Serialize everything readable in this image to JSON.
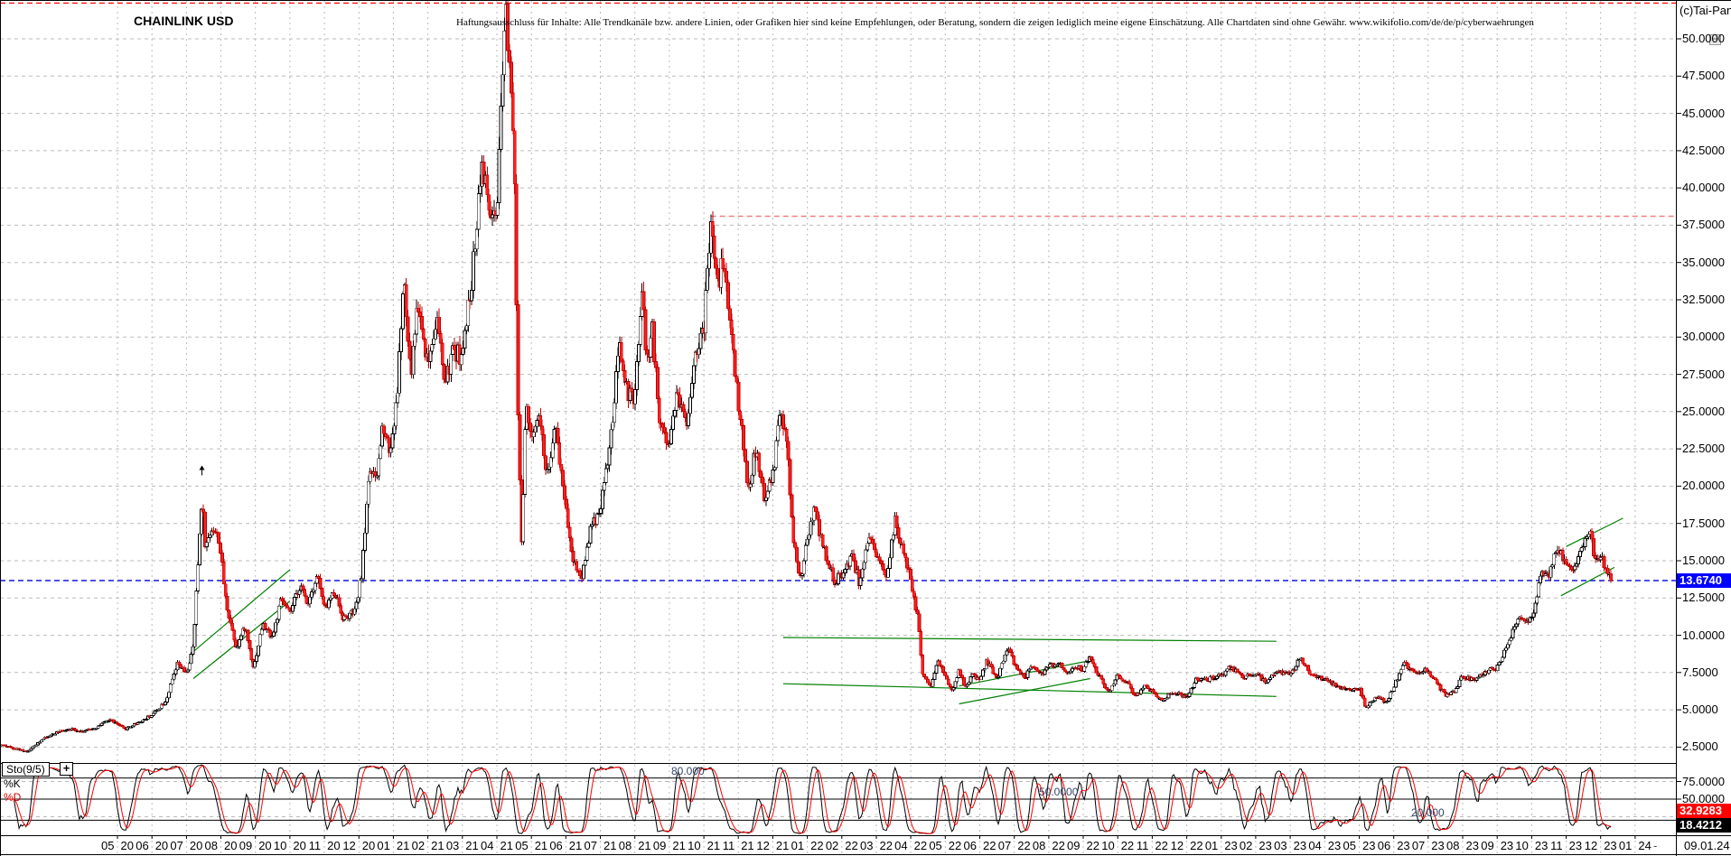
{
  "header": {
    "title": "CHAINLINK USD",
    "disclaimer": "Haftungsausschluss für Inhalte: Alle Trendkanäle bzw. andere Linien, oder Grafiken hier sind keine Empfehlungen, oder Beratung, sondern die zeigen lediglich meine eigene Einschätzung. Alle Chartdaten sind ohne Gewähr.  www.wikifolio.com/de/de/p/cyberwaehrungen",
    "copyright": "(c)Tai-Pan"
  },
  "colors": {
    "up_fill": "#ffffff",
    "up_stroke": "#000000",
    "down_fill": "#ff2020",
    "down_stroke": "#bb0000",
    "grid": "#bbbbbb",
    "frame": "#000000",
    "blue_line": "#0000e0",
    "blue_label_bg": "#0000ff",
    "red_line_top": "#ff1010",
    "red_line_resistance": "#f08080",
    "trend_green": "#008000",
    "sto_k": "#000000",
    "sto_d": "#ff0000",
    "d_label_bg": "#ff0000",
    "k_label_bg": "#000000",
    "threshold_label": "#35466b"
  },
  "chart_data": {
    "type": "candlestick",
    "title": "CHAINLINK USD",
    "x_axis": {
      "labels": [
        "05/20",
        "06/20",
        "07/20",
        "08/20",
        "09/20",
        "10/20",
        "11/20",
        "12/20",
        "01/21",
        "02/21",
        "03/21",
        "04/21",
        "05/21",
        "06/21",
        "07/21",
        "08/21",
        "09/21",
        "10/21",
        "11/21",
        "12/21",
        "01/22",
        "02/22",
        "03/22",
        "04/22",
        "05/22",
        "06/22",
        "07/22",
        "08/22",
        "09/22",
        "10/22",
        "11/22",
        "12/22",
        "01/23",
        "02/23",
        "03/23",
        "04/23",
        "05/23",
        "06/23",
        "07/23",
        "08/23",
        "09/23",
        "10/23",
        "11/23",
        "12/23",
        "01/24"
      ],
      "separator_label": "-",
      "last_date": "09.01.24"
    },
    "y_axis": {
      "min": 2.5,
      "max": 50,
      "tick_labels": [
        "50.0000",
        "47.5000",
        "45.0000",
        "42.5000",
        "40.0000",
        "37.5000",
        "35.0000",
        "32.5000",
        "30.0000",
        "27.5000",
        "25.0000",
        "22.5000",
        "20.0000",
        "17.5000",
        "15.0000",
        "12.5000",
        "10.0000",
        "7.5000",
        "5.0000",
        "2.5000"
      ],
      "last_price": 13.674,
      "last_price_label": "13.6740"
    },
    "series": {
      "name": "CHAINLINK USD",
      "unit_note": "keyframes are [months_since_2020-05-01, price_usd] read from the chart",
      "keyframes": [
        [
          -2.35,
          2.65
        ],
        [
          -2.0,
          2.45
        ],
        [
          -1.6,
          2.2
        ],
        [
          -1.2,
          3.0
        ],
        [
          -0.8,
          3.45
        ],
        [
          -0.4,
          3.75
        ],
        [
          0,
          3.55
        ],
        [
          0.4,
          3.85
        ],
        [
          0.8,
          4.35
        ],
        [
          1.2,
          3.7
        ],
        [
          1.6,
          4.15
        ],
        [
          2.0,
          4.65
        ],
        [
          2.4,
          5.6
        ],
        [
          2.75,
          8.1
        ],
        [
          3.0,
          7.4
        ],
        [
          3.2,
          9.2
        ],
        [
          3.45,
          19.3
        ],
        [
          3.55,
          15.8
        ],
        [
          3.75,
          17.3
        ],
        [
          3.95,
          16.4
        ],
        [
          4.15,
          12.2
        ],
        [
          4.45,
          9.2
        ],
        [
          4.7,
          10.6
        ],
        [
          4.95,
          7.8
        ],
        [
          5.2,
          10.7
        ],
        [
          5.5,
          9.9
        ],
        [
          5.75,
          12.4
        ],
        [
          6.0,
          11.4
        ],
        [
          6.3,
          13.4
        ],
        [
          6.5,
          12.1
        ],
        [
          6.8,
          14.1
        ],
        [
          7.0,
          11.7
        ],
        [
          7.3,
          13.0
        ],
        [
          7.55,
          11.1
        ],
        [
          7.9,
          11.6
        ],
        [
          8.1,
          14.4
        ],
        [
          8.3,
          21.3
        ],
        [
          8.5,
          20.2
        ],
        [
          8.7,
          24.3
        ],
        [
          8.9,
          22.3
        ],
        [
          9.1,
          25.6
        ],
        [
          9.3,
          33.8
        ],
        [
          9.5,
          27.2
        ],
        [
          9.7,
          32.4
        ],
        [
          10.0,
          28.2
        ],
        [
          10.25,
          31.4
        ],
        [
          10.5,
          26.8
        ],
        [
          10.75,
          29.2
        ],
        [
          11.0,
          28.6
        ],
        [
          11.3,
          34.4
        ],
        [
          11.55,
          41.8
        ],
        [
          11.8,
          38.2
        ],
        [
          12.0,
          37.6
        ],
        [
          12.25,
          52.4
        ],
        [
          12.35,
          49.2
        ],
        [
          12.5,
          43.6
        ],
        [
          12.62,
          24.5
        ],
        [
          12.72,
          15.8
        ],
        [
          12.85,
          25.8
        ],
        [
          13.0,
          22.7
        ],
        [
          13.2,
          25.4
        ],
        [
          13.45,
          20.7
        ],
        [
          13.7,
          23.8
        ],
        [
          14.0,
          18.7
        ],
        [
          14.2,
          15.2
        ],
        [
          14.45,
          13.8
        ],
        [
          14.7,
          17.0
        ],
        [
          15.0,
          18.6
        ],
        [
          15.3,
          23.0
        ],
        [
          15.55,
          29.3
        ],
        [
          15.8,
          26.2
        ],
        [
          16.0,
          25.6
        ],
        [
          16.2,
          33.3
        ],
        [
          16.35,
          28.2
        ],
        [
          16.5,
          30.8
        ],
        [
          16.7,
          24.6
        ],
        [
          17.0,
          22.7
        ],
        [
          17.2,
          26.4
        ],
        [
          17.5,
          24.2
        ],
        [
          17.75,
          29.0
        ],
        [
          18.0,
          30.4
        ],
        [
          18.2,
          37.9
        ],
        [
          18.4,
          33.2
        ],
        [
          18.55,
          35.4
        ],
        [
          18.8,
          30.2
        ],
        [
          19.0,
          25.6
        ],
        [
          19.3,
          19.7
        ],
        [
          19.5,
          22.4
        ],
        [
          19.75,
          19.2
        ],
        [
          20.0,
          20.6
        ],
        [
          20.2,
          24.8
        ],
        [
          20.4,
          23.1
        ],
        [
          20.6,
          16.2
        ],
        [
          20.8,
          13.7
        ],
        [
          21.0,
          16.4
        ],
        [
          21.2,
          18.4
        ],
        [
          21.5,
          15.6
        ],
        [
          21.8,
          13.6
        ],
        [
          22.0,
          14.1
        ],
        [
          22.3,
          15.4
        ],
        [
          22.5,
          13.6
        ],
        [
          22.8,
          16.4
        ],
        [
          23.0,
          15.2
        ],
        [
          23.3,
          14.1
        ],
        [
          23.55,
          17.7
        ],
        [
          23.8,
          15.4
        ],
        [
          24.0,
          13.6
        ],
        [
          24.2,
          11.2
        ],
        [
          24.35,
          7.3
        ],
        [
          24.6,
          6.6
        ],
        [
          24.8,
          8.4
        ],
        [
          25.0,
          7.1
        ],
        [
          25.2,
          6.3
        ],
        [
          25.4,
          7.6
        ],
        [
          25.6,
          6.4
        ],
        [
          25.8,
          7.4
        ],
        [
          26.0,
          6.9
        ],
        [
          26.2,
          8.3
        ],
        [
          26.5,
          7.1
        ],
        [
          26.8,
          9.2
        ],
        [
          27.0,
          8.1
        ],
        [
          27.3,
          7.1
        ],
        [
          27.5,
          8.1
        ],
        [
          27.8,
          7.4
        ],
        [
          28.0,
          7.9
        ],
        [
          28.3,
          8.1
        ],
        [
          28.5,
          7.5
        ],
        [
          28.8,
          7.9
        ],
        [
          29.0,
          7.7
        ],
        [
          29.2,
          8.5
        ],
        [
          29.5,
          7.1
        ],
        [
          29.75,
          6.2
        ],
        [
          30.0,
          7.3
        ],
        [
          30.3,
          6.9
        ],
        [
          30.5,
          5.9
        ],
        [
          30.8,
          6.6
        ],
        [
          31.0,
          6.2
        ],
        [
          31.3,
          5.7
        ],
        [
          31.6,
          6.2
        ],
        [
          32.0,
          5.9
        ],
        [
          32.3,
          7.1
        ],
        [
          32.6,
          7.0
        ],
        [
          33.0,
          7.3
        ],
        [
          33.3,
          7.9
        ],
        [
          33.6,
          7.2
        ],
        [
          34.0,
          7.5
        ],
        [
          34.3,
          6.8
        ],
        [
          34.6,
          7.5
        ],
        [
          35.0,
          7.4
        ],
        [
          35.3,
          8.5
        ],
        [
          35.6,
          7.4
        ],
        [
          36.0,
          7.0
        ],
        [
          36.3,
          6.7
        ],
        [
          36.6,
          6.4
        ],
        [
          37.0,
          6.5
        ],
        [
          37.2,
          5.1
        ],
        [
          37.5,
          5.9
        ],
        [
          37.8,
          5.5
        ],
        [
          38.0,
          6.5
        ],
        [
          38.3,
          8.1
        ],
        [
          38.6,
          7.6
        ],
        [
          39.0,
          7.7
        ],
        [
          39.2,
          6.9
        ],
        [
          39.5,
          6.0
        ],
        [
          39.8,
          6.3
        ],
        [
          40.0,
          7.3
        ],
        [
          40.3,
          7.0
        ],
        [
          40.6,
          7.5
        ],
        [
          41.0,
          7.8
        ],
        [
          41.3,
          9.4
        ],
        [
          41.6,
          11.1
        ],
        [
          42.0,
          11.0
        ],
        [
          42.3,
          14.4
        ],
        [
          42.5,
          13.9
        ],
        [
          42.7,
          15.7
        ],
        [
          43.0,
          15.1
        ],
        [
          43.2,
          14.1
        ],
        [
          43.5,
          16.1
        ],
        [
          43.7,
          17.3
        ],
        [
          43.85,
          14.9
        ],
        [
          44.0,
          15.4
        ],
        [
          44.15,
          14.3
        ],
        [
          44.3,
          13.674
        ]
      ]
    },
    "h_lines": [
      {
        "price": 52.4,
        "from_m": -2.45,
        "to_axis": true,
        "style": "red-top"
      },
      {
        "price": 38.1,
        "from_m": 18.2,
        "to_axis": true,
        "style": "red-resistance"
      },
      {
        "price": 13.674,
        "from_m": -2.45,
        "to_axis": true,
        "style": "blue-last-price"
      }
    ],
    "trend_lines": [
      {
        "from": [
          3.2,
          8.9
        ],
        "to": [
          6.0,
          14.4
        ]
      },
      {
        "from": [
          3.2,
          7.1
        ],
        "to": [
          6.0,
          12.3
        ]
      },
      {
        "from": [
          20.3,
          9.85
        ],
        "to": [
          34.6,
          9.6
        ]
      },
      {
        "from": [
          20.3,
          6.75
        ],
        "to": [
          34.6,
          5.9
        ]
      },
      {
        "from": [
          25.4,
          6.6
        ],
        "to": [
          29.2,
          8.3
        ]
      },
      {
        "from": [
          25.4,
          5.4
        ],
        "to": [
          29.2,
          7.1
        ]
      },
      {
        "from": [
          43.0,
          15.95
        ],
        "to": [
          44.65,
          17.85
        ]
      },
      {
        "from": [
          42.85,
          12.65
        ],
        "to": [
          44.4,
          14.55
        ]
      }
    ],
    "markers": [
      {
        "m": 3.45,
        "price": 20.6,
        "type": "up-arrow"
      }
    ],
    "stochastic": {
      "name": "Sto(9/5)",
      "plus_button": "+",
      "k_label": "%K",
      "d_label": "%D",
      "d_value_label": "32.9283",
      "k_value_label": "18.4212",
      "thresholds": [
        80,
        50,
        20
      ],
      "threshold_labels": [
        "80.000",
        "50.0000",
        "20.000"
      ],
      "axis_labels": [
        {
          "v": 75,
          "text": "75.0000"
        },
        {
          "v": 50,
          "text": "50.0000"
        }
      ]
    }
  }
}
